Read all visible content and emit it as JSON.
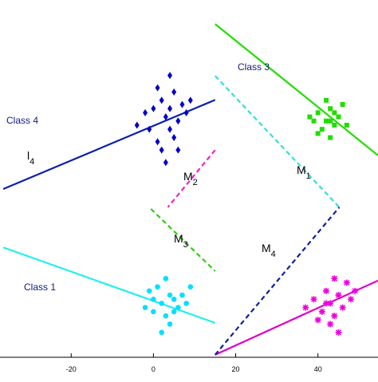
{
  "chart_data": {
    "type": "scatter",
    "xlim": [
      -37.3,
      54.6
    ],
    "ylim": [
      0,
      86.2
    ],
    "xticks": [
      -20,
      0,
      20,
      40
    ],
    "series": [
      {
        "name": "Class 4",
        "color": "#0000c8",
        "marker": "diamond",
        "x": [
          0,
          2,
          4,
          3,
          5,
          1,
          6,
          -2,
          4,
          7,
          2,
          -4,
          5,
          8,
          3,
          1,
          6,
          -1,
          9,
          4
        ],
        "values": [
          60,
          62,
          55,
          58,
          64,
          52,
          57,
          59,
          68,
          61,
          50,
          56,
          53,
          59,
          47,
          65,
          50,
          55,
          62,
          60
        ]
      },
      {
        "name": "Class 3",
        "color": "#22dd00",
        "marker": "square",
        "x": [
          42,
          40,
          44,
          43,
          41,
          45,
          39,
          43,
          46,
          42,
          40,
          44,
          38,
          47,
          43
        ],
        "values": [
          57,
          59,
          56,
          60,
          55,
          58,
          57,
          53,
          61,
          62,
          54,
          59,
          58,
          56,
          57
        ]
      },
      {
        "name": "Class 1",
        "color": "#00e0ff",
        "marker": "circle",
        "x": [
          2,
          4,
          0,
          3,
          5,
          -1,
          6,
          1,
          4,
          8,
          -2,
          3,
          7,
          2,
          5,
          9,
          0
        ],
        "values": [
          13,
          15,
          11,
          10,
          14,
          16,
          12,
          17,
          8,
          13,
          12,
          19,
          15,
          6,
          11,
          17,
          14
        ]
      },
      {
        "color": "#ee00dd",
        "marker": "star",
        "x": [
          43,
          41,
          45,
          44,
          42,
          46,
          39,
          47,
          43,
          40,
          48,
          44,
          37,
          45,
          42,
          49
        ],
        "values": [
          13,
          11,
          15,
          10,
          16,
          12,
          14,
          18,
          8,
          9,
          14,
          19,
          12,
          6,
          13,
          16
        ]
      }
    ],
    "lines": [
      {
        "color": "#0a1fb0",
        "dash": false,
        "x": [
          -36.5,
          15.0
        ],
        "values": [
          40.6,
          62.1
        ]
      },
      {
        "color": "#22dd00",
        "dash": false,
        "x": [
          15.0,
          54.6
        ],
        "values": [
          80.4,
          48.7
        ]
      },
      {
        "color": "#22eeee",
        "dash": false,
        "x": [
          -36.5,
          15.0
        ],
        "values": [
          26.5,
          8.3
        ]
      },
      {
        "color": "#dd00cc",
        "dash": false,
        "x": [
          15.0,
          54.6
        ],
        "values": [
          0.6,
          18.5
        ]
      },
      {
        "color": "#33dddd",
        "dash": true,
        "x": [
          15.0,
          45.2
        ],
        "values": [
          67.9,
          36.2
        ]
      },
      {
        "color": "#1020a0",
        "dash": true,
        "x": [
          15.0,
          45.2
        ],
        "values": [
          0.6,
          36.2
        ]
      },
      {
        "color": "#ee22cc",
        "dash": true,
        "x": [
          15.0,
          3.5
        ],
        "values": [
          50.0,
          36.2
        ]
      },
      {
        "color": "#33cc11",
        "dash": true,
        "x": [
          -0.6,
          15.0
        ],
        "values": [
          35.8,
          20.8
        ]
      }
    ],
    "annotations": [
      {
        "text": "Class 4"
      },
      {
        "text": "l",
        "sub": "4"
      },
      {
        "text": "Class 3"
      },
      {
        "text": "M",
        "sub": "2"
      },
      {
        "text": "M",
        "sub": "1"
      },
      {
        "text": "M",
        "sub": "3"
      },
      {
        "text": "M",
        "sub": "4"
      },
      {
        "text": "Class 1"
      }
    ]
  }
}
